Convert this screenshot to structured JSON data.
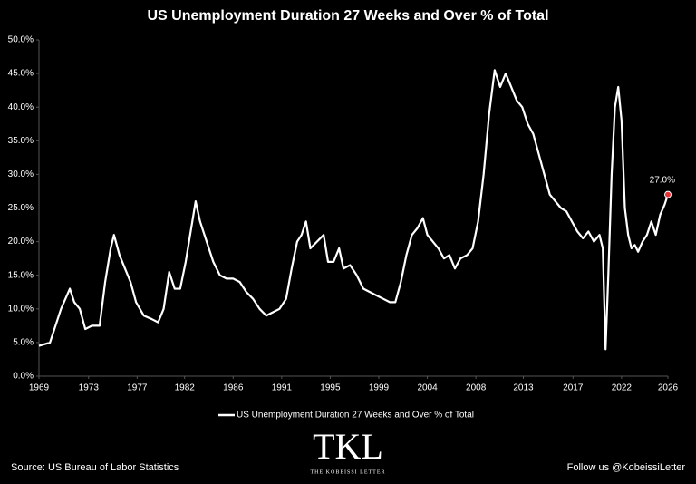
{
  "chart_data": {
    "type": "line",
    "title": "US Unemployment Duration 27 Weeks and Over % of Total",
    "x": [
      1969,
      1970,
      1971,
      1971.8,
      1972.2,
      1972.7,
      1973.2,
      1973.8,
      1974.5,
      1975,
      1975.5,
      1975.8,
      1976.3,
      1976.8,
      1977.3,
      1977.8,
      1978.5,
      1979.2,
      1979.8,
      1980.3,
      1980.8,
      1981.3,
      1981.8,
      1982.3,
      1982.8,
      1983.2,
      1983.6,
      1984.2,
      1984.8,
      1985.4,
      1986,
      1986.6,
      1987.2,
      1987.8,
      1988.4,
      1989,
      1989.6,
      1990.2,
      1990.8,
      1991.4,
      1991.9,
      1992.4,
      1992.8,
      1993.2,
      1993.6,
      1994.2,
      1994.8,
      1995.2,
      1995.7,
      1996.2,
      1996.6,
      1997.2,
      1997.8,
      1998.4,
      1999,
      1999.6,
      2000.2,
      2000.8,
      2001.3,
      2001.8,
      2002.3,
      2002.8,
      2003.3,
      2003.8,
      2004.2,
      2004.7,
      2005.2,
      2005.7,
      2006.2,
      2006.7,
      2007.2,
      2007.8,
      2008.3,
      2008.8,
      2009.3,
      2009.8,
      2010.3,
      2010.8,
      2011.3,
      2011.8,
      2012.3,
      2012.8,
      2013.3,
      2013.8,
      2014.3,
      2014.8,
      2015.3,
      2015.8,
      2016.3,
      2016.8,
      2017.3,
      2017.8,
      2018.3,
      2018.8,
      2019.3,
      2019.8,
      2020.1,
      2020.35,
      2020.6,
      2020.9,
      2021.2,
      2021.5,
      2021.8,
      2022.1,
      2022.4,
      2022.7,
      2023,
      2023.3,
      2023.7,
      2024.1,
      2024.5,
      2024.9,
      2025.3,
      2025.7,
      2026
    ],
    "series": [
      {
        "name": "US Unemployment Duration 27 Weeks and Over % of Total",
        "color": "#ffffff",
        "values": [
          4.5,
          5,
          10,
          13,
          11,
          10,
          7,
          7.5,
          7.5,
          14,
          19,
          21,
          18,
          16,
          14,
          11,
          9,
          8.5,
          8,
          10,
          15.5,
          13,
          13,
          17,
          22,
          26,
          23,
          20,
          17,
          15,
          14.5,
          14.5,
          14,
          12.5,
          11.5,
          10,
          9,
          9.5,
          10,
          11.5,
          16,
          20,
          21,
          23,
          19,
          20,
          21,
          17,
          17,
          19,
          16,
          16.5,
          15,
          13,
          12.5,
          12,
          11.5,
          11,
          11,
          14,
          18,
          21,
          22,
          23.5,
          21,
          20,
          19,
          17.5,
          18,
          16,
          17.5,
          18,
          19,
          23,
          30,
          39,
          45.5,
          43,
          45,
          43,
          41,
          40,
          37.5,
          36,
          33,
          30,
          27,
          26,
          25,
          24.5,
          23,
          21.5,
          20.5,
          21.5,
          20,
          21,
          19,
          4,
          15,
          30,
          40,
          43,
          38,
          25,
          21,
          19,
          19.5,
          18.5,
          20,
          21,
          23,
          21,
          24,
          25.5,
          27
        ]
      }
    ],
    "xlim": [
      1969,
      2026
    ],
    "xticks": [
      1969,
      {
        "value": 1973.5,
        "label": "1973"
      },
      {
        "value": 1977.9,
        "label": "1977"
      },
      {
        "value": 1982.2,
        "label": "1982"
      },
      {
        "value": 1986.6,
        "label": "1986"
      },
      1991,
      {
        "value": 1995.4,
        "label": "1995"
      },
      {
        "value": 1999.8,
        "label": "1999"
      },
      {
        "value": 2004.2,
        "label": "2004"
      },
      {
        "value": 2008.6,
        "label": "2008"
      },
      {
        "value": 2012.9,
        "label": "2013"
      },
      {
        "value": 2017.4,
        "label": "2017"
      },
      {
        "value": 2021.8,
        "label": "2022"
      },
      2026
    ],
    "ylim": [
      0,
      50
    ],
    "yticks": [
      {
        "value": 0,
        "label": "0.0%"
      },
      {
        "value": 5,
        "label": "5.0%"
      },
      {
        "value": 10,
        "label": "10.0%"
      },
      {
        "value": 15,
        "label": "15.0%"
      },
      {
        "value": 20,
        "label": "20.0%"
      },
      {
        "value": 25,
        "label": "25.0%"
      },
      {
        "value": 30,
        "label": "30.0%"
      },
      {
        "value": 35,
        "label": "35.0%"
      },
      {
        "value": 40,
        "label": "40.0%"
      },
      {
        "value": 45,
        "label": "45.0%"
      },
      {
        "value": 50,
        "label": "50.0%"
      }
    ],
    "annotations": [
      {
        "x": 2026,
        "y": 27,
        "text": "27.0%",
        "color": "#e8303a"
      }
    ],
    "source": "Source: US Bureau of Labor Statistics",
    "follow": "Follow us @KobeissiLetter",
    "logo": {
      "mark": "TKL",
      "name": "THE KOBEISSI LETTER"
    }
  }
}
